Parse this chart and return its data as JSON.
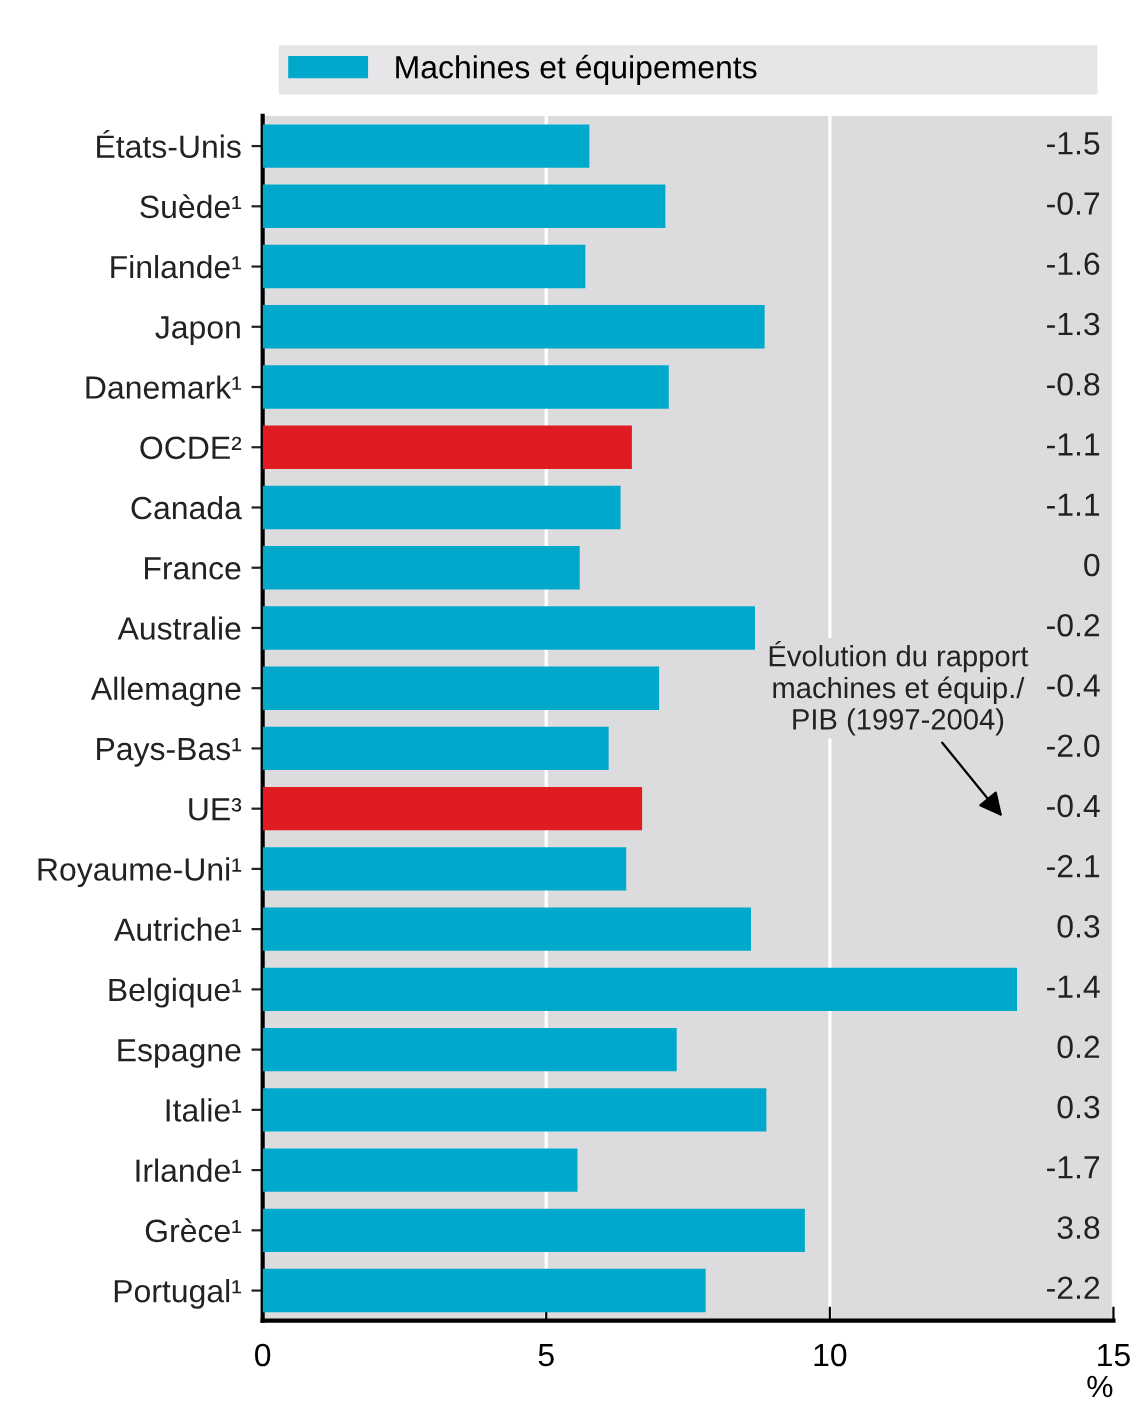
{
  "chart_data": {
    "type": "bar",
    "orientation": "horizontal",
    "categories": [
      "États-Unis",
      "Suède¹",
      "Finlande¹",
      "Japon",
      "Danemark¹",
      "OCDE²",
      "Canada",
      "France",
      "Australie",
      "Allemagne",
      "Pays-Bas¹",
      "UE³",
      "Royaume-Uni¹",
      "Autriche¹",
      "Belgique¹",
      "Espagne",
      "Italie¹",
      "Irlande¹",
      "Grèce¹",
      "Portugal¹"
    ],
    "series": [
      {
        "name": "Machines et équipements",
        "color": "#00a8cc",
        "colors": [
          "#00a8cc",
          "#00a8cc",
          "#00a8cc",
          "#00a8cc",
          "#00a8cc",
          "#e01b22",
          "#00a8cc",
          "#00a8cc",
          "#00a8cc",
          "#00a8cc",
          "#00a8cc",
          "#e01b22",
          "#00a8cc",
          "#00a8cc",
          "#00a8cc",
          "#00a8cc",
          "#00a8cc",
          "#00a8cc",
          "#00a8cc",
          "#00a8cc"
        ],
        "values": [
          5.76,
          7.1,
          5.69,
          8.85,
          7.16,
          6.51,
          6.31,
          5.59,
          8.68,
          6.99,
          6.1,
          6.69,
          6.41,
          8.61,
          13.3,
          7.3,
          8.88,
          5.55,
          9.56,
          7.81
        ]
      }
    ],
    "xlim": [
      0,
      15
    ],
    "xticks": [
      0,
      5,
      10,
      15
    ],
    "xlabel": "%",
    "grid": "x",
    "legend": "top",
    "annotations": [
      "-1.5",
      "-0.7",
      "-1.6",
      "-1.3",
      "-0.8",
      "-1.1",
      "-1.1",
      "0",
      "-0.2",
      "-0.4",
      "-2.0",
      "-0.4",
      "-2.1",
      "0.3",
      "-1.4",
      "0.2",
      "0.3",
      "-1.7",
      "3.8",
      "-2.2",
      "Évolution du rapport\nmachines et équip./\nPIB (1997-2004)"
    ]
  }
}
